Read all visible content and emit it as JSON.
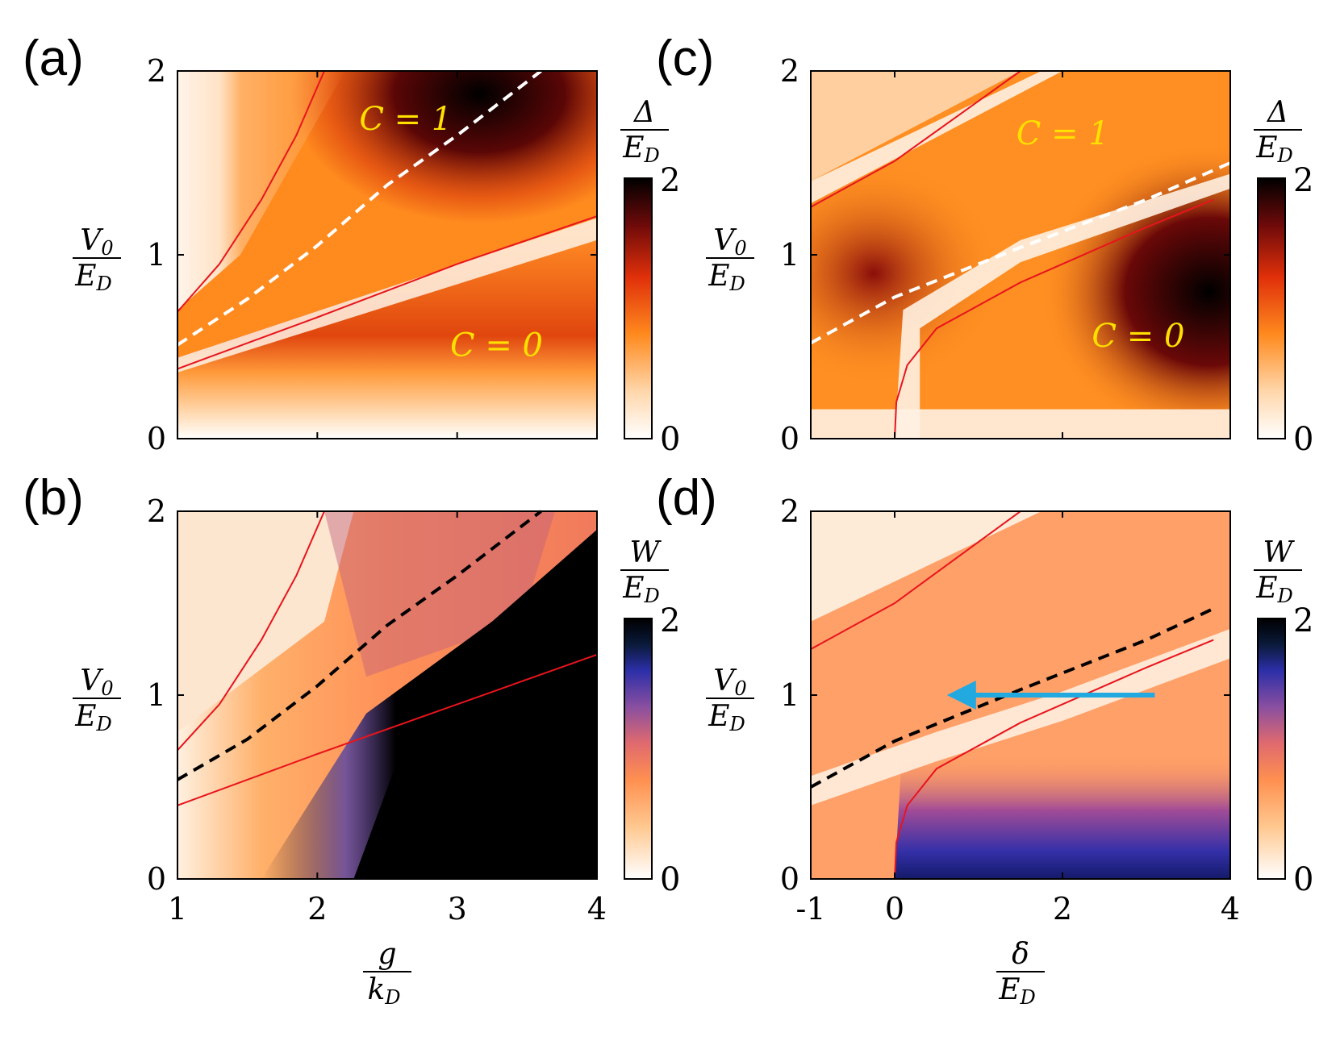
{
  "figure": {
    "colors": {
      "region_label": "#ffe000",
      "boundary_solid": "#e8141c",
      "arrow": "#21a9e0"
    }
  },
  "chart_data": [
    {
      "type": "heatmap",
      "panel": "(a)",
      "quantity": "gap",
      "colormap": "white-orange-red-black",
      "xlim": [
        1,
        4
      ],
      "ylim": [
        0,
        2
      ],
      "xticks": [
        1,
        2,
        3,
        4
      ],
      "yticks": [
        "0",
        "1",
        "2"
      ],
      "show_xtick_labels": false,
      "xlabel": {
        "num": "g",
        "den": "k",
        "den_sub": "D"
      },
      "ylabel": {
        "num": "V",
        "num_sub": "0",
        "den": "E",
        "den_sub": "D"
      },
      "colorbar": {
        "num": "Δ",
        "den": "E",
        "den_sub": "D",
        "min": "0",
        "max": "2"
      },
      "regions": [
        {
          "label": "C = 1",
          "x": 2.3,
          "y": 1.68
        },
        {
          "label": "C = 0",
          "x": 2.95,
          "y": 0.45
        }
      ],
      "curves": [
        {
          "style": "solid",
          "color": "#e8141c",
          "points": [
            [
              1.0,
              0.69
            ],
            [
              1.3,
              0.95
            ],
            [
              1.6,
              1.3
            ],
            [
              1.85,
              1.65
            ],
            [
              2.05,
              2.0
            ]
          ]
        },
        {
          "style": "dashed",
          "color": "#ffffff",
          "points": [
            [
              1.0,
              0.51
            ],
            [
              1.5,
              0.76
            ],
            [
              2.0,
              1.05
            ],
            [
              2.5,
              1.38
            ],
            [
              3.0,
              1.65
            ],
            [
              3.6,
              2.0
            ]
          ]
        },
        {
          "style": "solid",
          "color": "#e8141c",
          "points": [
            [
              1.0,
              0.38
            ],
            [
              2.0,
              0.66
            ],
            [
              3.0,
              0.95
            ],
            [
              4.0,
              1.21
            ]
          ]
        }
      ]
    },
    {
      "type": "heatmap",
      "panel": "(b)",
      "quantity": "bandwidth",
      "colormap": "white-orange-purple-black",
      "xlim": [
        1,
        4
      ],
      "ylim": [
        0,
        2
      ],
      "xticks": [
        1,
        2,
        3,
        4
      ],
      "yticks": [
        "0",
        "1",
        "2"
      ],
      "show_xtick_labels": true,
      "xticklabels": [
        "1",
        "2",
        "3",
        "4"
      ],
      "xlabel": {
        "num": "g",
        "den": "k",
        "den_sub": "D"
      },
      "ylabel": {
        "num": "V",
        "num_sub": "0",
        "den": "E",
        "den_sub": "D"
      },
      "colorbar": {
        "num": "W",
        "den": "E",
        "den_sub": "D",
        "min": "0",
        "max": "2"
      },
      "regions": [],
      "curves": [
        {
          "style": "solid",
          "color": "#e8141c",
          "points": [
            [
              1.0,
              0.7
            ],
            [
              1.3,
              0.95
            ],
            [
              1.6,
              1.3
            ],
            [
              1.85,
              1.65
            ],
            [
              2.05,
              2.0
            ]
          ]
        },
        {
          "style": "dashed",
          "color": "#000000",
          "points": [
            [
              1.0,
              0.54
            ],
            [
              1.5,
              0.76
            ],
            [
              2.0,
              1.05
            ],
            [
              2.5,
              1.38
            ],
            [
              3.0,
              1.65
            ],
            [
              3.6,
              2.0
            ]
          ]
        },
        {
          "style": "solid",
          "color": "#e8141c",
          "points": [
            [
              1.0,
              0.4
            ],
            [
              2.0,
              0.68
            ],
            [
              3.0,
              0.95
            ],
            [
              4.0,
              1.22
            ]
          ]
        }
      ]
    },
    {
      "type": "heatmap",
      "panel": "(c)",
      "quantity": "gap",
      "colormap": "white-orange-red-black",
      "xlim": [
        -1,
        4
      ],
      "ylim": [
        0,
        2
      ],
      "xticks": [
        -1,
        0,
        2,
        4
      ],
      "yticks": [
        "0",
        "1",
        "2"
      ],
      "show_xtick_labels": false,
      "xlabel": {
        "num": "δ",
        "den": "E",
        "den_sub": "D"
      },
      "ylabel": {
        "num": "V",
        "num_sub": "0",
        "den": "E",
        "den_sub": "D"
      },
      "colorbar": {
        "num": "Δ",
        "den": "E",
        "den_sub": "D",
        "min": "0",
        "max": "2"
      },
      "regions": [
        {
          "label": "C = 1",
          "x": 1.45,
          "y": 1.6
        },
        {
          "label": "C = 0",
          "x": 2.35,
          "y": 0.5
        }
      ],
      "curves": [
        {
          "style": "solid",
          "color": "#e8141c",
          "points": [
            [
              -1.0,
              1.26
            ],
            [
              0.0,
              1.51
            ],
            [
              1.5,
              2.0
            ]
          ]
        },
        {
          "style": "dashed",
          "color": "#ffffff",
          "points": [
            [
              -1.0,
              0.52
            ],
            [
              0.0,
              0.77
            ],
            [
              1.5,
              1.04
            ],
            [
              3.0,
              1.3
            ],
            [
              4.0,
              1.5
            ]
          ]
        },
        {
          "style": "solid",
          "color": "#e8141c",
          "points": [
            [
              0.0,
              0.0
            ],
            [
              0.02,
              0.2
            ],
            [
              0.15,
              0.4
            ],
            [
              0.5,
              0.6
            ],
            [
              1.5,
              0.85
            ],
            [
              3.0,
              1.15
            ],
            [
              3.8,
              1.3
            ]
          ]
        }
      ]
    },
    {
      "type": "heatmap",
      "panel": "(d)",
      "quantity": "bandwidth",
      "colormap": "white-orange-purple-black",
      "xlim": [
        -1,
        4
      ],
      "ylim": [
        0,
        2
      ],
      "xticks": [
        -1,
        0,
        2,
        4
      ],
      "yticks": [
        "0",
        "1",
        "2"
      ],
      "show_xtick_labels": true,
      "xticklabels": [
        "-1",
        "0",
        "2",
        "4"
      ],
      "xlabel": {
        "num": "δ",
        "den": "E",
        "den_sub": "D"
      },
      "ylabel": {
        "num": "V",
        "num_sub": "0",
        "den": "E",
        "den_sub": "D"
      },
      "colorbar": {
        "num": "W",
        "den": "E",
        "den_sub": "D",
        "min": "0",
        "max": "2"
      },
      "regions": [],
      "arrow": {
        "from": [
          3.1,
          1.0
        ],
        "to": [
          0.7,
          1.0
        ]
      },
      "curves": [
        {
          "style": "solid",
          "color": "#e8141c",
          "points": [
            [
              -1.0,
              1.25
            ],
            [
              0.0,
              1.5
            ],
            [
              1.5,
              2.0
            ]
          ]
        },
        {
          "style": "dashed",
          "color": "#000000",
          "points": [
            [
              -1.0,
              0.5
            ],
            [
              0.0,
              0.75
            ],
            [
              1.5,
              1.03
            ],
            [
              3.0,
              1.3
            ],
            [
              3.8,
              1.47
            ]
          ]
        },
        {
          "style": "solid",
          "color": "#e8141c",
          "points": [
            [
              0.0,
              0.0
            ],
            [
              0.02,
              0.2
            ],
            [
              0.15,
              0.4
            ],
            [
              0.5,
              0.6
            ],
            [
              1.5,
              0.85
            ],
            [
              3.0,
              1.15
            ],
            [
              3.8,
              1.3
            ]
          ]
        }
      ]
    }
  ]
}
